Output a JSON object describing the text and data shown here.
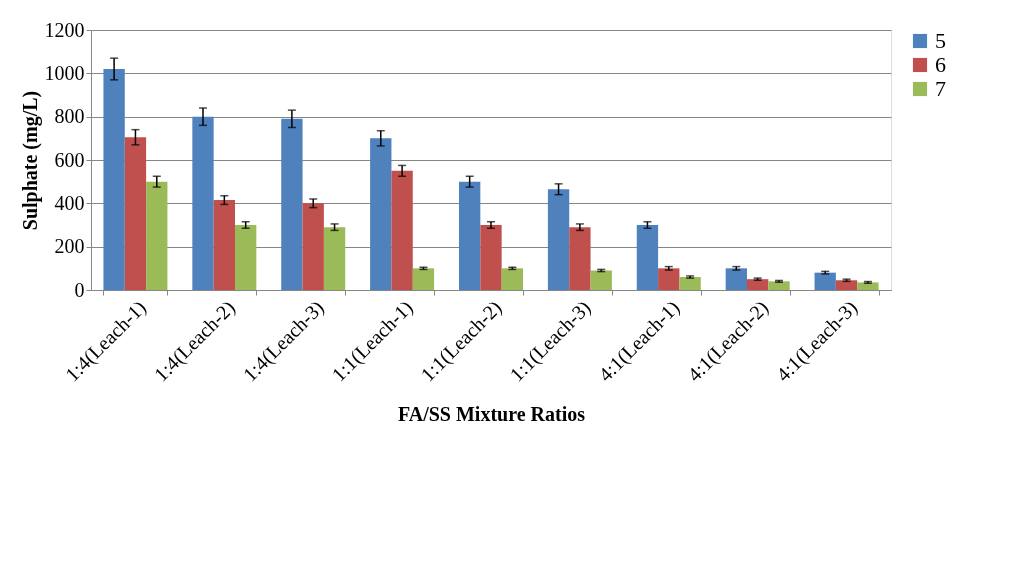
{
  "chart_data": {
    "type": "bar",
    "xlabel": "FA/SS Mixture Ratios",
    "ylabel": "Sulphate (mg/L)",
    "categories": [
      "1:4(Leach-1)",
      "1:4(Leach-2)",
      "1:4(Leach-3)",
      "1:1(Leach-1)",
      "1:1(Leach-2)",
      "1:1(Leach-3)",
      "4:1(Leach-1)",
      "4:1(Leach-2)",
      "4:1(Leach-3)"
    ],
    "series": [
      {
        "name": "5",
        "color": "#4f81bd",
        "values": [
          1020,
          800,
          790,
          700,
          500,
          465,
          300,
          100,
          80
        ],
        "errors": [
          50,
          40,
          40,
          35,
          25,
          25,
          15,
          8,
          6
        ]
      },
      {
        "name": "6",
        "color": "#c0504d",
        "values": [
          705,
          415,
          400,
          550,
          300,
          290,
          100,
          50,
          45
        ],
        "errors": [
          35,
          20,
          20,
          25,
          15,
          15,
          8,
          5,
          5
        ]
      },
      {
        "name": "7",
        "color": "#9bbb59",
        "values": [
          500,
          300,
          290,
          100,
          100,
          90,
          60,
          40,
          35
        ],
        "errors": [
          25,
          15,
          15,
          5,
          5,
          5,
          5,
          4,
          4
        ]
      }
    ],
    "ylim": [
      0,
      1200
    ],
    "yticks": [
      0,
      200,
      400,
      600,
      800,
      1000,
      1200
    ],
    "grid": "y",
    "legend": "right"
  }
}
